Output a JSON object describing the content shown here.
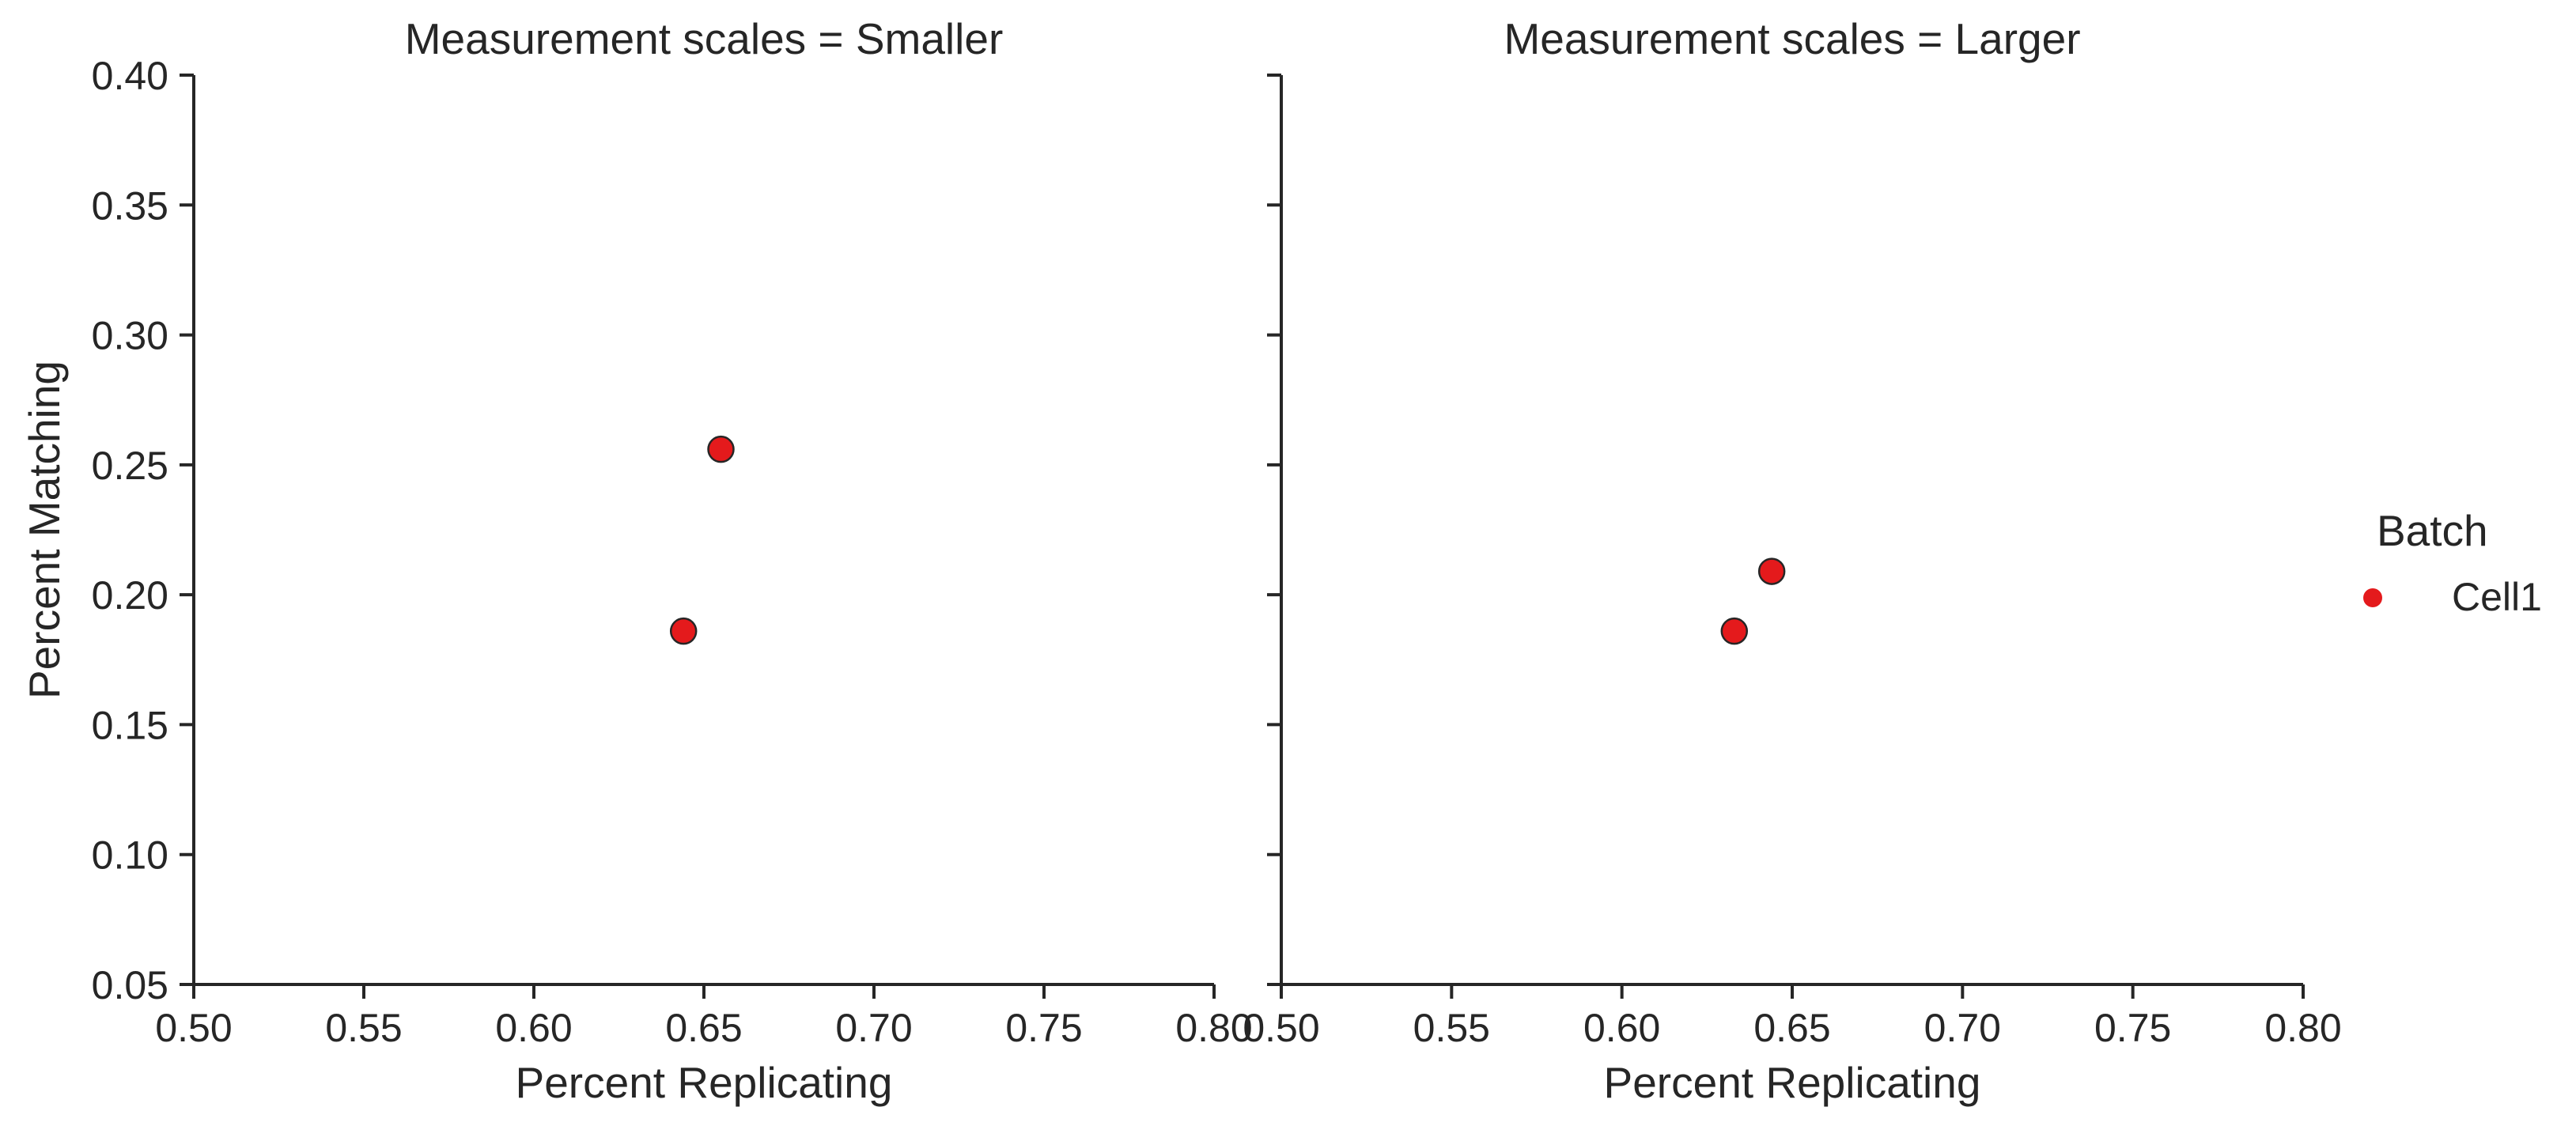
{
  "chart_data": {
    "type": "scatter",
    "xlabel": "Percent Replicating",
    "ylabel": "Percent Matching",
    "xlim": [
      0.5,
      0.8
    ],
    "ylim": [
      0.05,
      0.4
    ],
    "x_ticks": [
      "0.50",
      "0.55",
      "0.60",
      "0.65",
      "0.70",
      "0.75",
      "0.80"
    ],
    "y_ticks": [
      "0.05",
      "0.10",
      "0.15",
      "0.20",
      "0.25",
      "0.30",
      "0.35",
      "0.40"
    ],
    "grid": false,
    "legend": {
      "title": "Batch",
      "placement": "right",
      "entries": [
        {
          "label": "Cell1",
          "color": "#e41a1c"
        }
      ]
    },
    "panels": [
      {
        "title": "Measurement scales = Smaller",
        "series": [
          {
            "name": "Cell1",
            "color": "#e41a1c",
            "points": [
              {
                "x": 0.644,
                "y": 0.186
              },
              {
                "x": 0.655,
                "y": 0.256
              }
            ]
          }
        ]
      },
      {
        "title": "Measurement scales = Larger",
        "series": [
          {
            "name": "Cell1",
            "color": "#e41a1c",
            "points": [
              {
                "x": 0.633,
                "y": 0.186
              },
              {
                "x": 0.644,
                "y": 0.209
              }
            ]
          }
        ]
      }
    ]
  }
}
